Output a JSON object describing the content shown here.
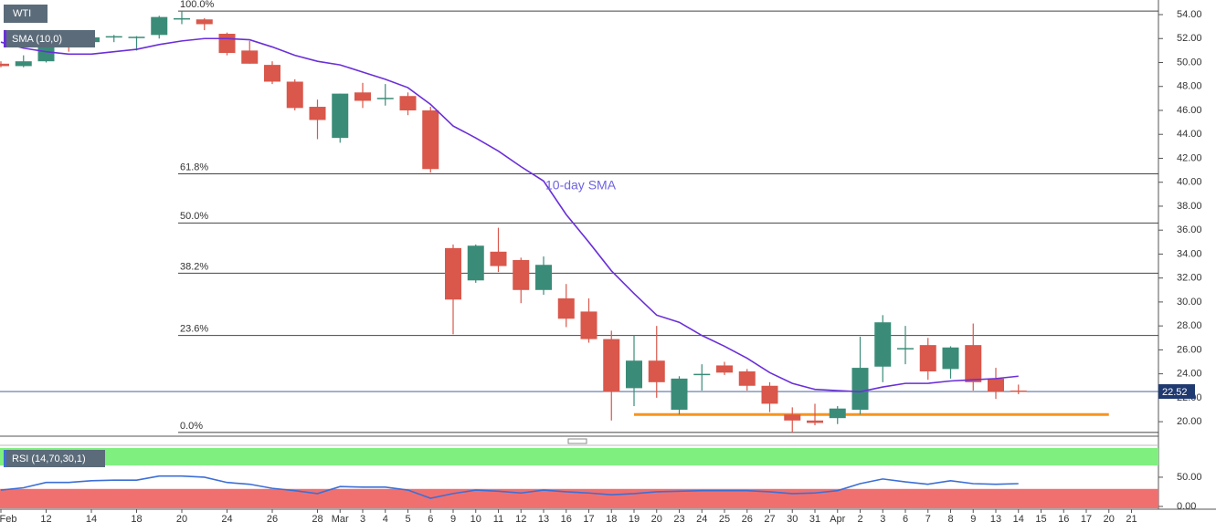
{
  "chart_data": {
    "type": "candlestick",
    "title": "WTI",
    "categories": [
      "Feb",
      null,
      "12",
      null,
      "14",
      null,
      "18",
      null,
      "20",
      null,
      "24",
      null,
      "26",
      null,
      "28",
      "Mar",
      "3",
      "4",
      "5",
      "6",
      "9",
      "10",
      "11",
      "12",
      "13",
      "16",
      "17",
      "18",
      "19",
      "20",
      "23",
      "24",
      "25",
      "26",
      "27",
      "30",
      "31",
      "Apr",
      "2",
      "3",
      "6",
      "7",
      "8",
      "9",
      "13",
      "14",
      "15",
      "16",
      "17",
      "20",
      "21"
    ],
    "open": [
      49.9,
      49.7,
      50.1,
      51.8,
      51.7,
      52.1,
      52.1,
      52.3,
      53.6,
      53.6,
      52.4,
      51.0,
      49.8,
      48.4,
      46.3,
      43.7,
      47.5,
      47.0,
      47.2,
      46.0,
      34.5,
      31.8,
      34.2,
      33.5,
      31.0,
      30.3,
      29.2,
      26.9,
      22.8,
      25.1,
      21.0,
      23.9,
      24.7,
      24.2,
      23.0,
      20.6,
      20.1,
      20.3,
      21.0,
      24.6,
      26.1,
      26.4,
      24.4,
      26.4,
      23.6,
      22.6,
      null,
      null,
      null,
      null,
      null
    ],
    "high": [
      50.1,
      50.6,
      52.4,
      52.0,
      52.2,
      52.3,
      52.2,
      53.9,
      54.3,
      53.7,
      52.5,
      51.8,
      50.1,
      48.6,
      46.9,
      47.4,
      48.3,
      48.2,
      47.5,
      46.3,
      34.8,
      34.8,
      36.2,
      33.7,
      33.8,
      31.5,
      30.3,
      27.6,
      27.2,
      28.0,
      23.8,
      24.8,
      25.0,
      24.4,
      23.3,
      21.2,
      21.5,
      21.3,
      27.1,
      28.9,
      28.0,
      27.0,
      26.3,
      28.2,
      24.5,
      23.1,
      null,
      null,
      null,
      null,
      null
    ],
    "low": [
      49.6,
      49.6,
      50.0,
      50.9,
      51.5,
      51.7,
      51.0,
      52.0,
      53.2,
      52.7,
      50.6,
      49.9,
      48.2,
      46.0,
      43.6,
      43.3,
      46.2,
      46.4,
      45.6,
      40.8,
      27.3,
      31.6,
      32.5,
      29.9,
      30.6,
      27.9,
      26.6,
      20.1,
      21.3,
      22.0,
      20.6,
      22.6,
      23.9,
      22.6,
      20.8,
      19.1,
      19.7,
      19.8,
      20.6,
      23.3,
      24.8,
      23.5,
      23.6,
      22.6,
      21.9,
      22.3,
      null,
      null,
      null,
      null,
      null
    ],
    "close": [
      49.7,
      50.1,
      52.0,
      51.4,
      52.1,
      52.2,
      52.15,
      53.8,
      53.7,
      53.2,
      50.8,
      49.9,
      48.4,
      46.2,
      45.2,
      47.4,
      46.8,
      47.05,
      46.0,
      41.1,
      30.2,
      34.7,
      33.0,
      31.0,
      33.1,
      28.6,
      26.9,
      22.5,
      25.1,
      23.3,
      23.6,
      24.0,
      24.1,
      23.0,
      21.5,
      20.1,
      19.9,
      21.1,
      24.5,
      28.3,
      26.15,
      24.2,
      26.2,
      23.3,
      22.5,
      22.5,
      null,
      null,
      null,
      null,
      null
    ],
    "up_color": "#3a8c78",
    "down_color": "#d9574b",
    "sma": {
      "name": "SMA (10,0)",
      "color": "#6a2fd8",
      "values": [
        51.7,
        51.2,
        50.9,
        50.7,
        50.7,
        50.9,
        51.1,
        51.5,
        51.8,
        52.0,
        52.0,
        51.9,
        51.3,
        50.6,
        50.1,
        49.8,
        49.2,
        48.6,
        47.9,
        46.5,
        44.7,
        43.7,
        42.6,
        41.3,
        40.1,
        37.3,
        35.0,
        32.6,
        30.7,
        28.9,
        28.3,
        27.2,
        26.3,
        25.3,
        24.1,
        23.2,
        22.7,
        22.6,
        22.5,
        22.9,
        23.2,
        23.2,
        23.4,
        23.5,
        23.6,
        23.8,
        null,
        null,
        null,
        null,
        null
      ]
    },
    "annotation": "10-day SMA",
    "fib": [
      {
        "label": "100.0%",
        "value": 54.3
      },
      {
        "label": "61.8%",
        "value": 40.7
      },
      {
        "label": "50.0%",
        "value": 36.6
      },
      {
        "label": "38.2%",
        "value": 32.4
      },
      {
        "label": "23.6%",
        "value": 27.2
      },
      {
        "label": "0.0%",
        "value": 19.1
      }
    ],
    "support": {
      "color": "#f7941d",
      "values": [
        null,
        null,
        null,
        null,
        null,
        null,
        null,
        null,
        null,
        null,
        null,
        null,
        null,
        null,
        null,
        null,
        null,
        null,
        null,
        null,
        null,
        null,
        null,
        null,
        null,
        null,
        null,
        null,
        20.6,
        20.6,
        20.6,
        20.6,
        20.6,
        20.6,
        20.6,
        20.6,
        20.6,
        20.6,
        20.6,
        20.6,
        20.6,
        20.6,
        20.6,
        20.6,
        20.6,
        20.6,
        20.6,
        20.6,
        20.6,
        20.6,
        null
      ]
    },
    "last_price": 22.52,
    "ylim": [
      18.79,
      55.22
    ],
    "yticks": [
      {
        "value": 54,
        "label": "54.00"
      },
      {
        "value": 52,
        "label": "52.00"
      },
      {
        "value": 50,
        "label": "50.00"
      },
      {
        "value": 48,
        "label": "48.00"
      },
      {
        "value": 46,
        "label": "46.00"
      },
      {
        "value": 44,
        "label": "44.00"
      },
      {
        "value": 42,
        "label": "42.00"
      },
      {
        "value": 40,
        "label": "40.00"
      },
      {
        "value": 38,
        "label": "38.00"
      },
      {
        "value": 36,
        "label": "36.00"
      },
      {
        "value": 34,
        "label": "34.00"
      },
      {
        "value": 32,
        "label": "32.00"
      },
      {
        "value": 30,
        "label": "30.00"
      },
      {
        "value": 28,
        "label": "28.00"
      },
      {
        "value": 26,
        "label": "26.00"
      },
      {
        "value": 24,
        "label": "24.00"
      },
      {
        "value": 22,
        "label": "22.00"
      },
      {
        "value": 20,
        "label": "20.00"
      }
    ],
    "rsi": {
      "name": "RSI (14,70,30,1)",
      "upper": 70,
      "lower": 30,
      "color": "#3c6fd6",
      "upper_color": "#7ff07f",
      "lower_color": "#f07070",
      "ylim": [
        -4.7,
        103
      ],
      "yticks": [
        {
          "value": 50,
          "label": "50.00"
        },
        {
          "value": 0,
          "label": "0.00"
        }
      ],
      "values": [
        28,
        32,
        41,
        41,
        44,
        45,
        45,
        52,
        52,
        50,
        41,
        38,
        31,
        27,
        22,
        34,
        33,
        33,
        28,
        14,
        22,
        28,
        26,
        23,
        28,
        25,
        23,
        20,
        22,
        25,
        26,
        27,
        27,
        27,
        25,
        22,
        23,
        27,
        39,
        47,
        42,
        38,
        44,
        39,
        38,
        39,
        null,
        null,
        null,
        null,
        null
      ]
    }
  }
}
